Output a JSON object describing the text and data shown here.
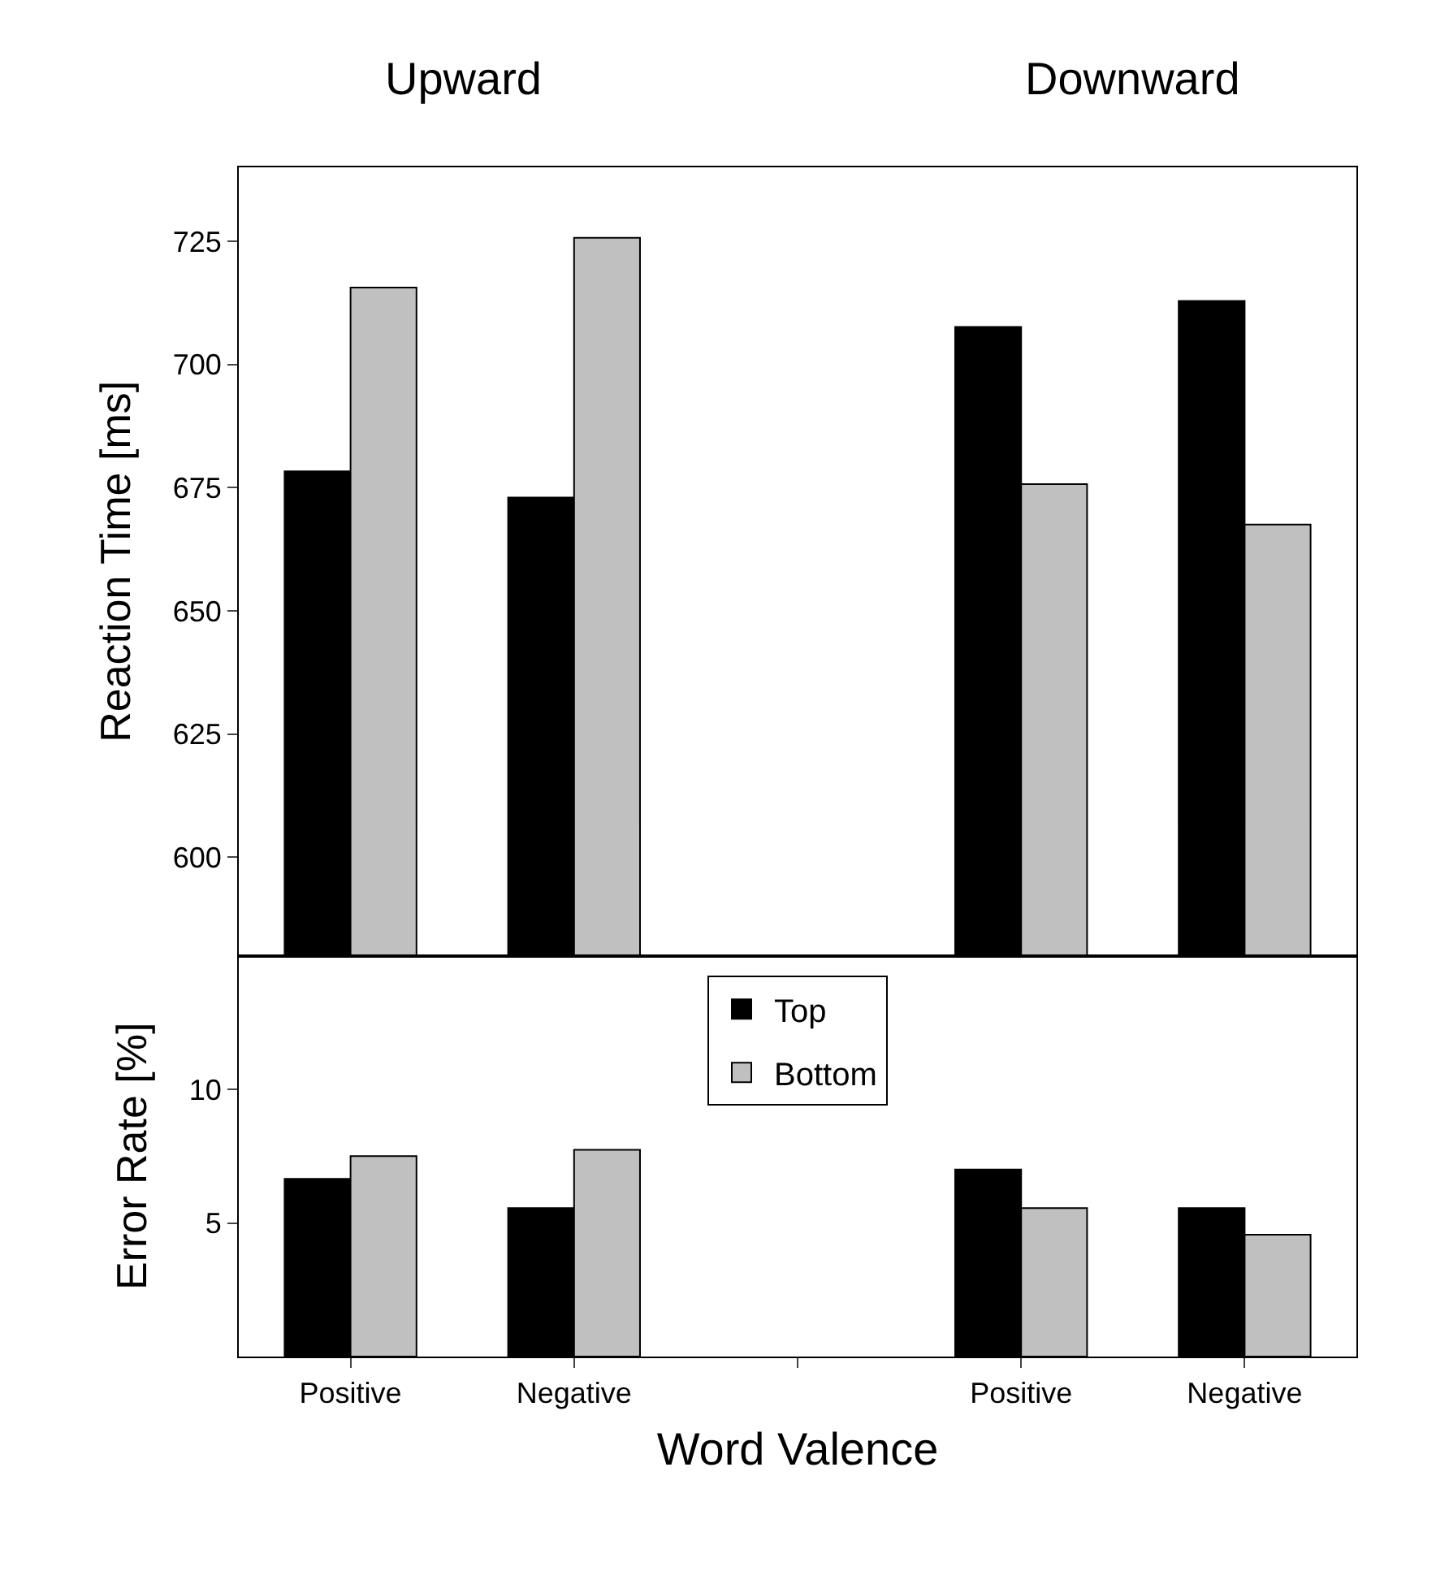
{
  "chart_data": [
    {
      "type": "bar",
      "ylabel": "Reaction Time [ms]",
      "annotations": [
        "Upward",
        "Downward"
      ],
      "categories": [
        null,
        null,
        null,
        null,
        null
      ],
      "series": [
        {
          "color": "#000000",
          "values": [
            678.3,
            673.0,
            null,
            707.6,
            712.9
          ]
        },
        {
          "color": "#c0c0c0",
          "values": [
            715.6,
            725.7,
            null,
            675.7,
            667.5
          ]
        }
      ],
      "ylim": [
        580,
        740
      ],
      "yticks": [
        600,
        625,
        650,
        675,
        700,
        725
      ],
      "tick_labels": "y",
      "grid": false,
      "legend": false
    },
    {
      "type": "bar",
      "ylabel": "Error Rate [%]",
      "xlabel": "Word Valence",
      "categories": [
        "Positive",
        "Negative",
        null,
        "Positive",
        "Negative"
      ],
      "series": [
        {
          "name": "Top",
          "color": "#000000",
          "values": [
            6.65,
            5.56,
            null,
            7.0,
            5.56
          ]
        },
        {
          "name": "Bottom",
          "color": "#c0c0c0",
          "values": [
            7.5,
            7.74,
            null,
            5.56,
            4.56
          ]
        }
      ],
      "ylim": [
        0,
        15
      ],
      "yticks": [
        5,
        10
      ],
      "grid": false,
      "legend": "top"
    }
  ]
}
